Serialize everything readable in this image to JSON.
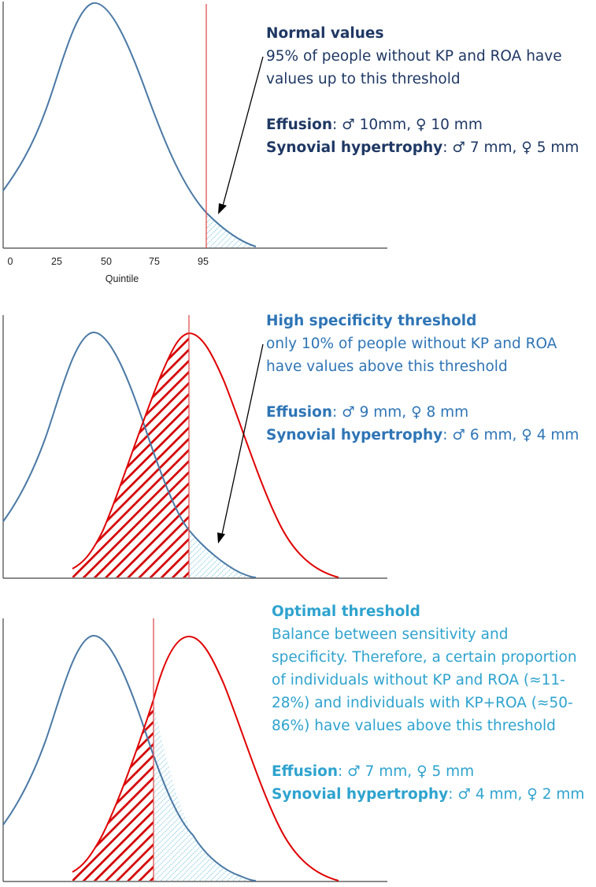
{
  "panels": [
    {
      "title": "Normal values",
      "description_lines": [
        " 95% of people without KP and ROA have",
        "values up to this threshold"
      ],
      "effusion_label": "Effusion",
      "effusion_value": ": ♂ 10mm, ♀ 10 mm",
      "synovial_label": "Synovial hypertrophy",
      "synovial_value": ": ♂ 7 mm, ♀ 5 mm",
      "text_color": "#1f3864",
      "threshold_quintile": 95,
      "axis": {
        "ticks": [
          {
            "value": 0,
            "label": "0"
          },
          {
            "value": 25,
            "label": "25"
          },
          {
            "value": 50,
            "label": "50"
          },
          {
            "value": 75,
            "label": "75"
          },
          {
            "value": 95,
            "label": "95"
          }
        ],
        "title": "Quintile"
      }
    },
    {
      "title": "High specificity threshold",
      "description_lines": [
        "only 10% of people without KP and ROA",
        "have values above this threshold"
      ],
      "effusion_label": "Effusion",
      "effusion_value": ": ♂ 9 mm, ♀ 8 mm",
      "synovial_label": "Synovial hypertrophy",
      "synovial_value": ": ♂ 6 mm, ♀ 4 mm",
      "text_color": "#2e75b6"
    },
    {
      "title": "Optimal threshold",
      "description_lines": [
        "Balance between sensitivity and",
        "specificity. Therefore, a certain proportion",
        "of individuals without KP and ROA (≈11-",
        "28%)  and individuals with KP+ROA (≈50-",
        "86%) have values above this threshold"
      ],
      "effusion_label": "Effusion",
      "effusion_value": ": ♂ 7 mm, ♀ 5 mm",
      "synovial_label": "Synovial hypertrophy",
      "synovial_value": ": ♂ 4 mm, ♀ 2 mm",
      "text_color": "#2ea3cf"
    }
  ],
  "colors": {
    "healthy_curve": "#4a79a5",
    "disease_curve": "#e00000",
    "threshold_line": "#e05050",
    "healthy_hatch": "#5bb8d8",
    "disease_hatch": "#d40000"
  }
}
